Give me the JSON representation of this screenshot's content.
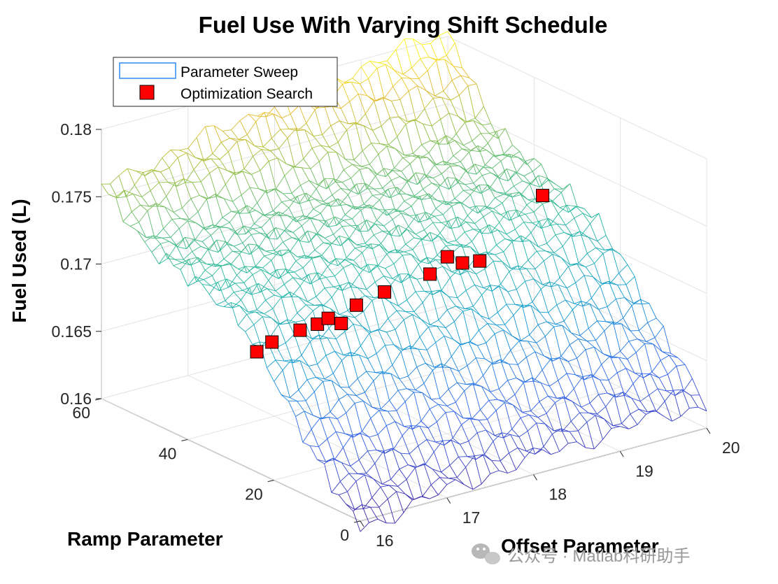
{
  "chart_data": {
    "type": "surface3d",
    "title": "Fuel Use With Varying Shift Schedule",
    "xlabel": "Offset Parameter",
    "ylabel": "Ramp Parameter",
    "zlabel": "Fuel Used (L)",
    "xlim": [
      16,
      20
    ],
    "ylim": [
      0,
      60
    ],
    "zlim": [
      0.16,
      0.18
    ],
    "xticks": [
      "16",
      "17",
      "18",
      "19",
      "20"
    ],
    "yticks": [
      "0",
      "20",
      "40",
      "60"
    ],
    "zticks": [
      "0.16",
      "0.165",
      "0.17",
      "0.175",
      "0.18"
    ],
    "legend": [
      "Parameter Sweep",
      "Optimization Search"
    ],
    "legend_position": "top-left",
    "grid": true,
    "ramp_samples": [
      0,
      5,
      10,
      15,
      20,
      25,
      30,
      35,
      40,
      45,
      50,
      55,
      60
    ],
    "surface_profile": [
      {
        "offset": 16.0,
        "fuel": [
          0.1595,
          0.1612,
          0.163,
          0.1652,
          0.1676,
          0.1697,
          0.171,
          0.1716,
          0.1721,
          0.1725,
          0.1729,
          0.1745,
          0.1758
        ]
      },
      {
        "offset": 16.5,
        "fuel": [
          0.16,
          0.1617,
          0.1636,
          0.1658,
          0.1681,
          0.1701,
          0.1713,
          0.1719,
          0.1724,
          0.1728,
          0.1732,
          0.175,
          0.1764
        ]
      },
      {
        "offset": 17.0,
        "fuel": [
          0.1605,
          0.1622,
          0.1641,
          0.1663,
          0.1685,
          0.1704,
          0.1716,
          0.1722,
          0.1727,
          0.1731,
          0.1736,
          0.1756,
          0.1771
        ]
      },
      {
        "offset": 17.5,
        "fuel": [
          0.1609,
          0.1627,
          0.1646,
          0.1668,
          0.1689,
          0.1708,
          0.1719,
          0.1725,
          0.173,
          0.1734,
          0.1739,
          0.1761,
          0.1778
        ]
      },
      {
        "offset": 18.0,
        "fuel": [
          0.1612,
          0.163,
          0.165,
          0.1671,
          0.1692,
          0.171,
          0.1721,
          0.1727,
          0.1732,
          0.1736,
          0.1742,
          0.1766,
          0.1785
        ]
      },
      {
        "offset": 18.5,
        "fuel": [
          0.1614,
          0.1632,
          0.1652,
          0.1673,
          0.1694,
          0.1712,
          0.1722,
          0.1728,
          0.1734,
          0.1738,
          0.1745,
          0.177,
          0.179
        ]
      },
      {
        "offset": 19.0,
        "fuel": [
          0.1616,
          0.1634,
          0.1654,
          0.1675,
          0.1696,
          0.1713,
          0.1723,
          0.1729,
          0.1735,
          0.174,
          0.1748,
          0.1774,
          0.1795
        ]
      },
      {
        "offset": 19.5,
        "fuel": [
          0.1617,
          0.1635,
          0.1655,
          0.1676,
          0.1697,
          0.1714,
          0.1724,
          0.173,
          0.1736,
          0.1741,
          0.175,
          0.1777,
          0.1799
        ]
      },
      {
        "offset": 20.0,
        "fuel": [
          0.1618,
          0.1636,
          0.1656,
          0.1677,
          0.1698,
          0.1715,
          0.1724,
          0.173,
          0.1736,
          0.1742,
          0.1751,
          0.1779,
          0.1802
        ]
      }
    ],
    "optimization_points": [
      {
        "offset": 16.05,
        "ramp": 25.0,
        "fuel": 0.1687
      },
      {
        "offset": 16.25,
        "ramp": 25.5,
        "fuel": 0.169
      },
      {
        "offset": 16.6,
        "ramp": 26.0,
        "fuel": 0.1692
      },
      {
        "offset": 16.8,
        "ramp": 26.0,
        "fuel": 0.1693
      },
      {
        "offset": 16.95,
        "ramp": 26.5,
        "fuel": 0.1694
      },
      {
        "offset": 17.05,
        "ramp": 25.5,
        "fuel": 0.169
      },
      {
        "offset": 17.3,
        "ramp": 27.0,
        "fuel": 0.1697
      },
      {
        "offset": 17.65,
        "ramp": 27.5,
        "fuel": 0.17
      },
      {
        "offset": 18.2,
        "ramp": 28.0,
        "fuel": 0.1703
      },
      {
        "offset": 18.45,
        "ramp": 29.0,
        "fuel": 0.171
      },
      {
        "offset": 18.55,
        "ramp": 27.5,
        "fuel": 0.1706
      },
      {
        "offset": 18.75,
        "ramp": 27.5,
        "fuel": 0.1704
      },
      {
        "offset": 19.75,
        "ramp": 33.0,
        "fuel": 0.1727
      }
    ]
  },
  "watermark": "公众号 · Matlab科研助手"
}
